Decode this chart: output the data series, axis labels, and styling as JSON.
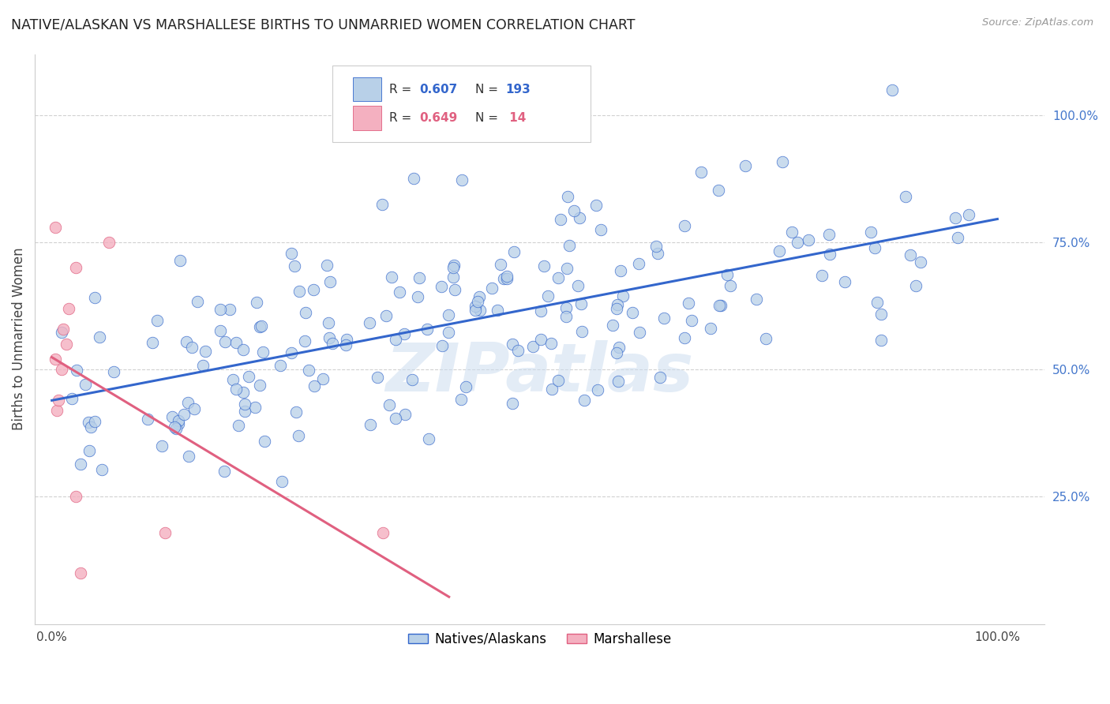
{
  "title": "NATIVE/ALASKAN VS MARSHALLESE BIRTHS TO UNMARRIED WOMEN CORRELATION CHART",
  "source": "Source: ZipAtlas.com",
  "ylabel": "Births to Unmarried Women",
  "watermark": "ZIPatlas",
  "native_R": 0.607,
  "native_N": 193,
  "marsh_R": 0.649,
  "marsh_N": 14,
  "native_color": "#b8d0e8",
  "marsh_color": "#f4b0c0",
  "native_line_color": "#3366cc",
  "marsh_line_color": "#e06080",
  "background_color": "#ffffff",
  "grid_color": "#cccccc",
  "title_color": "#222222",
  "legend_label_native": "Natives/Alaskans",
  "legend_label_marsh": "Marshallese",
  "right_axis_color": "#4477cc",
  "seed": 42
}
